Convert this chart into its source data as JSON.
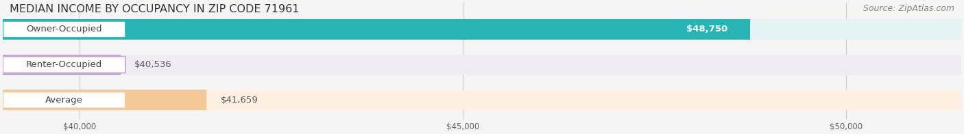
{
  "title": "MEDIAN INCOME BY OCCUPANCY IN ZIP CODE 71961",
  "source": "Source: ZipAtlas.com",
  "categories": [
    "Owner-Occupied",
    "Renter-Occupied",
    "Average"
  ],
  "values": [
    48750,
    40536,
    41659
  ],
  "bar_colors": [
    "#28b4b4",
    "#c3a8d1",
    "#f5c898"
  ],
  "bar_bg_colors": [
    "#e4f4f4",
    "#f0eaf5",
    "#fdf0e2"
  ],
  "value_labels": [
    "$48,750",
    "$40,536",
    "$41,659"
  ],
  "value_label_inside": [
    true,
    false,
    false
  ],
  "xmin": 39000,
  "xmax": 51500,
  "xticks": [
    40000,
    45000,
    50000
  ],
  "xtick_labels": [
    "$40,000",
    "$45,000",
    "$50,000"
  ],
  "background_color": "#f5f5f5",
  "bar_height": 0.58,
  "label_fontsize": 9.5,
  "title_fontsize": 11.5,
  "source_fontsize": 9
}
